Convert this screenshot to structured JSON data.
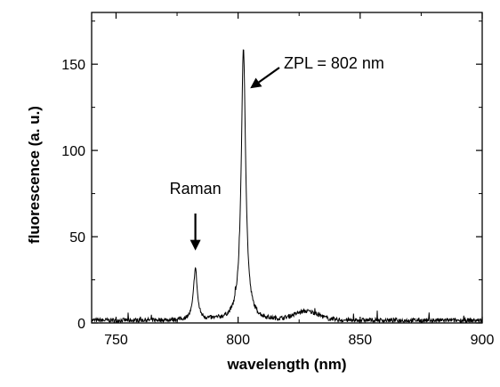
{
  "chart_data": {
    "type": "line",
    "title": "",
    "xlabel": "wavelength (nm)",
    "ylabel": "fluorescence (a. u.)",
    "xlim": [
      740,
      900
    ],
    "ylim": [
      0,
      180
    ],
    "x_ticks": [
      750,
      800,
      850,
      900
    ],
    "y_ticks": [
      0,
      50,
      100,
      150
    ],
    "grid": false,
    "legend": "none",
    "series": [
      {
        "color": "#000000",
        "baseline": 1.5,
        "noise_amplitude": 2.5,
        "peaks": [
          {
            "center": 782.5,
            "height": 30,
            "width": 0.9
          },
          {
            "center": 802.2,
            "height": 157,
            "width": 1.1
          }
        ],
        "broad_features": [
          {
            "center": 828,
            "height": 5,
            "width": 7
          }
        ]
      }
    ],
    "annotations": [
      {
        "text": "Raman",
        "arrow_to": {
          "x": 782.5,
          "y": 42
        }
      },
      {
        "text": "ZPL = 802 nm",
        "arrow_to": {
          "x": 803.5,
          "y": 136
        }
      }
    ]
  }
}
